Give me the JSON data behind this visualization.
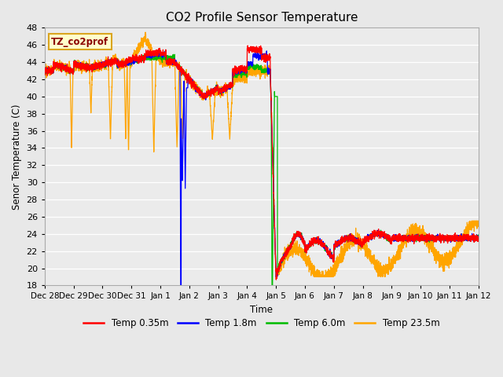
{
  "title": "CO2 Profile Sensor Temperature",
  "ylabel": "Senor Temperature (C)",
  "xlabel": "Time",
  "ylim": [
    18,
    48
  ],
  "yticks": [
    18,
    20,
    22,
    24,
    26,
    28,
    30,
    32,
    34,
    36,
    38,
    40,
    42,
    44,
    46,
    48
  ],
  "annotation_text": "TZ_co2prof",
  "annotation_color": "#8B0000",
  "annotation_bg": "#FFFFCC",
  "annotation_border": "#DAA520",
  "legend_labels": [
    "Temp 0.35m",
    "Temp 1.8m",
    "Temp 6.0m",
    "Temp 23.5m"
  ],
  "line_colors": [
    "#FF0000",
    "#0000FF",
    "#00BB00",
    "#FFA500"
  ],
  "background_color": "#E8E8E8",
  "plot_bg": "#EBEBEB",
  "grid_color": "#FFFFFF",
  "xtick_labels": [
    "Dec 28",
    "Dec 29",
    "Dec 30",
    "Dec 31",
    "Jan 1",
    "Jan 2",
    "Jan 3",
    "Jan 4",
    "Jan 5",
    "Jan 6",
    "Jan 7",
    "Jan 8",
    "Jan 9",
    "Jan 10",
    "Jan 11",
    "Jan 12"
  ],
  "start_day": 0,
  "end_day": 15
}
